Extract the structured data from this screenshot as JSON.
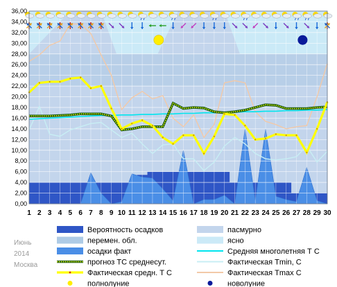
{
  "chart_data": {
    "type": "line",
    "side_labels": [
      "Июнь",
      "2014",
      "Москва"
    ],
    "x": [
      1,
      2,
      3,
      4,
      5,
      6,
      7,
      8,
      9,
      10,
      11,
      12,
      13,
      14,
      15,
      16,
      17,
      18,
      19,
      20,
      21,
      22,
      23,
      24,
      25,
      26,
      27,
      28,
      29,
      30
    ],
    "ylim": [
      0,
      36
    ],
    "yticks": [
      "0,00",
      "2,00",
      "4,00",
      "6,00",
      "8,00",
      "10,00",
      "12,00",
      "14,00",
      "16,00",
      "18,00",
      "20,00",
      "22,00",
      "24,00",
      "26,00",
      "28,00",
      "30,00",
      "32,00",
      "34,00",
      "36,00"
    ],
    "grid": true,
    "legend_position": "bottom",
    "colors": {
      "overcast": "#c3d5ec",
      "variable": "#aecbe6",
      "clear": "#cbeaf7",
      "precip_prob": "#2f56c6",
      "precip_fact": "#4a8ee6",
      "climate_avg": "#00e5ee",
      "forecast_avg": "#3aa02a",
      "fact_avg": "#ffff00",
      "tmin": "#c8eef4",
      "tmax": "#f2c9a8",
      "full_moon": "#ffee00",
      "new_moon": "#0a1a9a"
    },
    "series": [
      {
        "name": "Вероятность осадков",
        "values": [
          4,
          4,
          4,
          4,
          4,
          4,
          4,
          4,
          4,
          4,
          4,
          5.4,
          6,
          6,
          6,
          6,
          6,
          6,
          6,
          6,
          4,
          4,
          4,
          4,
          4,
          4,
          2,
          2,
          2,
          2
        ]
      },
      {
        "name": "осадки факт",
        "values": [
          0,
          0,
          0,
          0,
          0,
          0,
          5.8,
          2,
          0,
          0.4,
          5.6,
          5,
          4.8,
          2.8,
          0.6,
          10,
          0,
          0.8,
          0.8,
          1.6,
          0,
          14,
          0.6,
          14,
          1.4,
          0.8,
          0.4,
          6.8,
          0.6,
          0
        ]
      },
      {
        "name": "прогноз ТС среднесут.",
        "values": [
          16.4,
          16.4,
          16.4,
          16.5,
          16.6,
          16.8,
          16.8,
          16.8,
          16.4,
          13.8,
          14.0,
          14.4,
          14.4,
          14.4,
          18.8,
          17.8,
          18.0,
          17.9,
          17.2,
          17.0,
          17.2,
          17.5,
          18.0,
          18.5,
          18.4,
          17.8,
          17.8,
          17.8,
          18.0,
          18.1
        ]
      },
      {
        "name": "Средняя многолетняя Т С",
        "values": [
          15.8,
          15.9,
          16.0,
          16.1,
          16.2,
          16.3,
          16.4,
          16.5,
          16.5,
          16.6,
          16.6,
          16.7,
          16.7,
          16.8,
          16.8,
          16.9,
          16.9,
          17.0,
          17.0,
          17.1,
          17.1,
          17.2,
          17.2,
          17.3,
          17.3,
          17.4,
          17.4,
          17.5,
          17.5,
          17.6
        ]
      },
      {
        "name": "Фактическая Tmin, С",
        "values": [
          13.8,
          18.2,
          13.0,
          12.6,
          13.8,
          14.4,
          15.0,
          15.2,
          13.8,
          12.4,
          13.2,
          11.2,
          9.4,
          11.0,
          11.2,
          8.4,
          8.4,
          6.2,
          7.8,
          10.8,
          12.4,
          11.2,
          9.4,
          8.4,
          8.2,
          8.4,
          8.8,
          10.8,
          7.8,
          9.8
        ]
      },
      {
        "name": "Фактическая Tmax С",
        "values": [
          26.6,
          27.8,
          29.6,
          30.4,
          33.6,
          33.6,
          31.8,
          27.8,
          24.0,
          17.6,
          19.8,
          21.0,
          19.6,
          20.2,
          16.0,
          14.4,
          16.6,
          12.4,
          14.8,
          22.6,
          23.0,
          22.6,
          17.2,
          15.4,
          14.8,
          14.0,
          14.4,
          14.6,
          20.0,
          26.2
        ]
      },
      {
        "name": "Фактическая средн. Т С",
        "values": [
          20.8,
          22.6,
          22.8,
          22.8,
          23.4,
          23.6,
          21.6,
          22.0,
          17.8,
          14.0,
          15.0,
          15.6,
          14.6,
          12.4,
          11.2,
          12.8,
          12.8,
          9.4,
          12.6,
          16.8,
          16.6,
          14.6,
          12.0,
          12.2,
          13.0,
          12.8,
          12.8,
          9.6,
          14.0,
          19.0
        ]
      }
    ],
    "background_bands": {
      "overcast": [
        1,
        4,
        4,
        4,
        4,
        4,
        4,
        4,
        1,
        1,
        1,
        1,
        1,
        4,
        4,
        4,
        4,
        4,
        4,
        4,
        4,
        4,
        4,
        4,
        4,
        4,
        4,
        4,
        4,
        4
      ],
      "variable": [
        1,
        1,
        1,
        1,
        1,
        1,
        1,
        1,
        1,
        1,
        1,
        1,
        1,
        1,
        1,
        1,
        1,
        1,
        1,
        1,
        1,
        1,
        1,
        1,
        1,
        1,
        1,
        1,
        1,
        1
      ]
    },
    "moon": {
      "full_moon_day": 13,
      "full_moon_y": 30.6,
      "new_moon_day": 27,
      "new_moon_y": 30.6
    },
    "weather_icons": [
      "wi-cloud-sun",
      "wi-cloud-sun",
      "wi-cloud-sun",
      "wi-cloud-sun",
      "wi-sun",
      "wi-cloud-sun",
      "wi-cloud-sun",
      "wi-cloud-sun",
      "wi-cloud-sun",
      "wi-cloud-sun",
      "wi-cloud-sun",
      "wi-cloud-rain",
      "wi-cloud-sun",
      "wi-cloud-sun",
      "wi-cloud-rain",
      "wi-cloud-sun",
      "wi-cloud-sun",
      "wi-cloud-sun",
      "wi-cloud-rain",
      "wi-cloud-sun",
      "wi-cloud-sun",
      "wi-cloud-rain",
      "wi-cloud-sun",
      "wi-cloud-sun",
      "wi-cloud-sun",
      "wi-cloud-sun",
      "wi-cloud-rain",
      "wi-cloud-rain",
      "wi-cloud-sun",
      "wi-cloud-sun"
    ],
    "wind_dirs": [
      "multi",
      "multi",
      "multi",
      "multi",
      "multi",
      "multi",
      "multi",
      "multi",
      "se",
      "se",
      "s",
      "s",
      "w",
      "w",
      "s",
      "sw",
      "sw",
      "s",
      "s",
      "s",
      "se",
      "se",
      "sw",
      "se",
      "s",
      "se",
      "s",
      "se",
      "s",
      "multi"
    ],
    "legend": [
      {
        "label": "Вероятность осадков",
        "swatch": "bar",
        "color_key": "precip_prob"
      },
      {
        "label": "пасмурно",
        "swatch": "bar",
        "color_key": "overcast"
      },
      {
        "label": "перемен. обл.",
        "swatch": "bar",
        "color_key": "variable"
      },
      {
        "label": "ясно",
        "swatch": "bar",
        "color_key": "clear"
      },
      {
        "label": "осадки факт",
        "swatch": "bar",
        "color_key": "precip_fact"
      },
      {
        "label": "Средняя многолетняя Т С",
        "swatch": "line",
        "color_key": "climate_avg"
      },
      {
        "label": "прогноз ТС среднесут.",
        "swatch": "dotted",
        "color_key": "forecast_avg"
      },
      {
        "label": "Фактическая Tmin, С",
        "swatch": "line",
        "color_key": "tmin"
      },
      {
        "label": "Фактическая средн. Т С",
        "swatch": "thick",
        "color_key": "fact_avg"
      },
      {
        "label": "Фактическая Tmax С",
        "swatch": "line",
        "color_key": "tmax"
      },
      {
        "label": "полнолуние",
        "swatch": "dot",
        "color_key": "full_moon"
      },
      {
        "label": "новолуние",
        "swatch": "dot",
        "color_key": "new_moon"
      }
    ]
  }
}
